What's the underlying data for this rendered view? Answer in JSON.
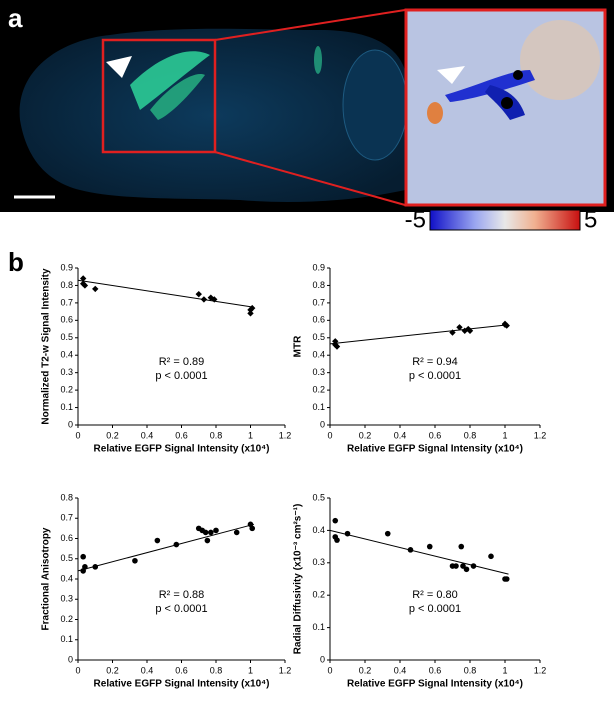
{
  "panel_labels": [
    "a",
    "b"
  ],
  "colorbar": {
    "range": [
      -5,
      5
    ]
  },
  "chart_data": [
    {
      "type": "scatter",
      "marker": "diamond",
      "color": "#000",
      "x_label": "Relative EGFP Signal Intensity (x10⁴)",
      "y_label": "Normalized T2-w Signal Intensity",
      "annotations": [
        "R² = 0.89",
        "p < 0.0001"
      ],
      "x": [
        0.03,
        0.03,
        0.04,
        0.1,
        0.7,
        0.73,
        0.77,
        0.79,
        1.0,
        1.0,
        1.01
      ],
      "values": [
        0.84,
        0.81,
        0.8,
        0.78,
        0.75,
        0.72,
        0.73,
        0.72,
        0.66,
        0.64,
        0.67
      ],
      "trendline": {
        "x": [
          0,
          1.02
        ],
        "y": [
          0.83,
          0.675
        ]
      },
      "xlim": [
        0,
        1.2
      ],
      "xticks": [
        0,
        0.2,
        0.4,
        0.6,
        0.8,
        1,
        1.2
      ],
      "ylim": [
        0,
        0.9
      ],
      "yticks": [
        0,
        0.1,
        0.2,
        0.3,
        0.4,
        0.5,
        0.6,
        0.7,
        0.8,
        0.9
      ]
    },
    {
      "type": "scatter",
      "marker": "diamond",
      "color": "#000",
      "x_label": "Relative EGFP Signal Intensity (x10⁴)",
      "y_label": "MTR",
      "annotations": [
        "R² = 0.94",
        "p < 0.0001"
      ],
      "x": [
        0.03,
        0.03,
        0.04,
        0.7,
        0.74,
        0.77,
        0.79,
        0.8,
        1.0,
        1.01,
        1.0
      ],
      "values": [
        0.48,
        0.46,
        0.45,
        0.53,
        0.56,
        0.54,
        0.55,
        0.54,
        0.58,
        0.57,
        0.575
      ],
      "trendline": {
        "x": [
          0,
          1.02
        ],
        "y": [
          0.465,
          0.575
        ]
      },
      "xlim": [
        0,
        1.2
      ],
      "xticks": [
        0,
        0.2,
        0.4,
        0.6,
        0.8,
        1,
        1.2
      ],
      "ylim": [
        0,
        0.9
      ],
      "yticks": [
        0,
        0.1,
        0.2,
        0.3,
        0.4,
        0.5,
        0.6,
        0.7,
        0.8,
        0.9
      ]
    },
    {
      "type": "scatter",
      "marker": "circle",
      "color": "#000",
      "x_label": "Relative EGFP Signal Intensity (x10⁴)",
      "y_label": "Fractional Anisotropy",
      "annotations": [
        "R² = 0.88",
        "p < 0.0001"
      ],
      "x": [
        0.03,
        0.03,
        0.04,
        0.1,
        0.33,
        0.46,
        0.57,
        0.7,
        0.72,
        0.74,
        0.75,
        0.77,
        0.8,
        0.92,
        1.0,
        1.01
      ],
      "values": [
        0.51,
        0.44,
        0.46,
        0.46,
        0.49,
        0.59,
        0.57,
        0.65,
        0.64,
        0.63,
        0.59,
        0.63,
        0.64,
        0.63,
        0.67,
        0.65
      ],
      "trendline": {
        "x": [
          0,
          1.02
        ],
        "y": [
          0.44,
          0.67
        ]
      },
      "xlim": [
        0,
        1.2
      ],
      "xticks": [
        0,
        0.2,
        0.4,
        0.6,
        0.8,
        1,
        1.2
      ],
      "ylim": [
        0,
        0.8
      ],
      "yticks": [
        0,
        0.1,
        0.2,
        0.3,
        0.4,
        0.5,
        0.6,
        0.7,
        0.8
      ]
    },
    {
      "type": "scatter",
      "marker": "circle",
      "color": "#000",
      "x_label": "Relative EGFP Signal Intensity (x10⁴)",
      "y_label": "Radial Diffusivity (x10⁻³ cm²s⁻¹)",
      "annotations": [
        "R² = 0.80",
        "p < 0.0001"
      ],
      "x": [
        0.03,
        0.03,
        0.04,
        0.1,
        0.33,
        0.46,
        0.57,
        0.7,
        0.72,
        0.75,
        0.76,
        0.78,
        0.82,
        0.92,
        1.0,
        1.01
      ],
      "values": [
        0.43,
        0.38,
        0.37,
        0.39,
        0.39,
        0.34,
        0.35,
        0.29,
        0.29,
        0.35,
        0.29,
        0.28,
        0.29,
        0.32,
        0.25,
        0.25
      ],
      "trendline": {
        "x": [
          0,
          1.02
        ],
        "y": [
          0.4,
          0.265
        ]
      },
      "xlim": [
        0,
        1.2
      ],
      "xticks": [
        0,
        0.2,
        0.4,
        0.6,
        0.8,
        1,
        1.2
      ],
      "ylim": [
        0,
        0.5
      ],
      "yticks": [
        0,
        0.1,
        0.2,
        0.3,
        0.4,
        0.5
      ]
    }
  ]
}
